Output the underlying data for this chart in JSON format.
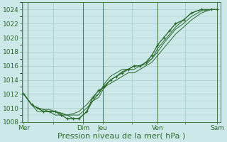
{
  "background_color": "#cce8e8",
  "plot_bg_color": "#cce8e8",
  "grid_color": "#aacfcf",
  "line_color": "#2d6a2d",
  "ylim": [
    1008,
    1025
  ],
  "yticks": [
    1008,
    1010,
    1012,
    1014,
    1016,
    1018,
    1020,
    1022,
    1024
  ],
  "xlabel": "Pression niveau de la mer( hPa )",
  "xlabel_fontsize": 8,
  "tick_fontsize": 6.5,
  "xtick_labels": [
    "Mer",
    "   ",
    "Dim",
    "Jeu",
    " ",
    "Ven",
    " ",
    "Sam"
  ],
  "xtick_positions": [
    0,
    1.5,
    3.0,
    4.0,
    5.5,
    6.8,
    8.2,
    9.8
  ],
  "vline_positions": [
    0.2,
    3.0,
    4.0,
    6.8,
    9.8
  ],
  "lines": [
    {
      "x": [
        0.0,
        0.4,
        0.7,
        1.0,
        1.3,
        1.6,
        1.9,
        2.2,
        2.5,
        2.8,
        3.2,
        3.5,
        3.8,
        4.1,
        4.4,
        4.7,
        5.0,
        5.3,
        5.6,
        5.9,
        6.2,
        6.5,
        6.8,
        7.1,
        7.4,
        7.7,
        8.1,
        8.5,
        9.0,
        9.5,
        9.8
      ],
      "y": [
        1012.0,
        1010.5,
        1010.0,
        1009.5,
        1009.5,
        1009.5,
        1009.0,
        1008.5,
        1008.5,
        1008.5,
        1009.5,
        1011.5,
        1012.5,
        1013.0,
        1014.0,
        1014.5,
        1015.0,
        1015.5,
        1016.0,
        1016.0,
        1016.5,
        1017.5,
        1019.0,
        1020.0,
        1021.0,
        1022.0,
        1022.5,
        1023.5,
        1024.0,
        1024.0,
        1024.0
      ]
    },
    {
      "x": [
        0.0,
        0.4,
        0.7,
        1.0,
        1.3,
        1.6,
        1.9,
        2.2,
        2.5,
        2.8,
        3.2,
        3.5,
        3.8,
        4.1,
        4.4,
        4.7,
        5.0,
        5.3,
        5.6,
        5.9,
        6.2,
        6.5,
        6.8,
        7.1,
        7.4,
        7.7,
        8.1,
        8.5,
        9.0,
        9.5,
        9.8
      ],
      "y": [
        1012.0,
        1010.5,
        1010.0,
        1009.8,
        1009.5,
        1009.5,
        1009.2,
        1009.0,
        1009.0,
        1009.0,
        1010.0,
        1011.0,
        1012.0,
        1013.5,
        1014.5,
        1015.0,
        1015.5,
        1015.5,
        1016.0,
        1016.0,
        1016.5,
        1017.0,
        1018.5,
        1019.5,
        1020.5,
        1021.5,
        1022.5,
        1023.5,
        1024.0,
        1024.0,
        1024.0
      ]
    },
    {
      "x": [
        0.0,
        0.4,
        0.7,
        1.0,
        1.3,
        1.6,
        1.9,
        2.2,
        2.5,
        2.8,
        3.2,
        3.5,
        3.8,
        4.1,
        4.4,
        4.7,
        5.0,
        5.3,
        5.6,
        5.9,
        6.2,
        6.5,
        6.8,
        7.1,
        7.4,
        7.7,
        8.1,
        8.5,
        9.0,
        9.5,
        9.8
      ],
      "y": [
        1012.0,
        1010.5,
        1009.5,
        1009.5,
        1009.5,
        1009.0,
        1009.0,
        1009.0,
        1008.5,
        1008.5,
        1009.5,
        1011.0,
        1011.5,
        1013.0,
        1013.5,
        1014.0,
        1014.5,
        1015.0,
        1015.0,
        1015.5,
        1016.0,
        1016.5,
        1017.5,
        1018.5,
        1019.5,
        1020.5,
        1021.5,
        1022.5,
        1023.5,
        1024.0,
        1024.0
      ]
    },
    {
      "x": [
        0.0,
        0.4,
        0.7,
        1.0,
        1.3,
        1.6,
        1.9,
        2.2,
        2.5,
        2.8,
        3.2,
        3.5,
        3.8,
        4.1,
        4.4,
        4.7,
        5.0,
        5.3,
        5.6,
        5.9,
        6.2,
        6.5,
        6.8,
        7.1,
        7.4,
        7.7,
        8.1,
        8.5,
        9.0,
        9.5,
        9.8
      ],
      "y": [
        1012.0,
        1010.5,
        1010.0,
        1009.8,
        1009.8,
        1009.5,
        1009.3,
        1009.0,
        1009.2,
        1009.5,
        1010.5,
        1011.5,
        1012.0,
        1013.2,
        1014.0,
        1014.5,
        1015.2,
        1015.5,
        1015.5,
        1016.0,
        1016.2,
        1017.0,
        1018.0,
        1019.2,
        1020.2,
        1021.2,
        1022.0,
        1023.0,
        1023.8,
        1024.0,
        1024.0
      ]
    }
  ],
  "marker_x": [
    0.0,
    0.4,
    0.7,
    1.0,
    1.3,
    1.6,
    1.9,
    2.2,
    2.5,
    2.8,
    3.2,
    3.5,
    3.8,
    4.1,
    4.4,
    4.7,
    5.0,
    5.3,
    5.6,
    5.9,
    6.2,
    6.5,
    6.8,
    7.1,
    7.4,
    7.7,
    8.1,
    8.5,
    9.0,
    9.5,
    9.8
  ],
  "marker_y": [
    1012.0,
    1010.5,
    1010.0,
    1009.5,
    1009.5,
    1009.5,
    1009.0,
    1008.5,
    1008.5,
    1008.5,
    1009.5,
    1011.5,
    1012.5,
    1013.0,
    1014.0,
    1014.5,
    1015.0,
    1015.5,
    1016.0,
    1016.0,
    1016.5,
    1017.5,
    1019.0,
    1020.0,
    1021.0,
    1022.0,
    1022.5,
    1023.5,
    1024.0,
    1024.0,
    1024.0
  ]
}
